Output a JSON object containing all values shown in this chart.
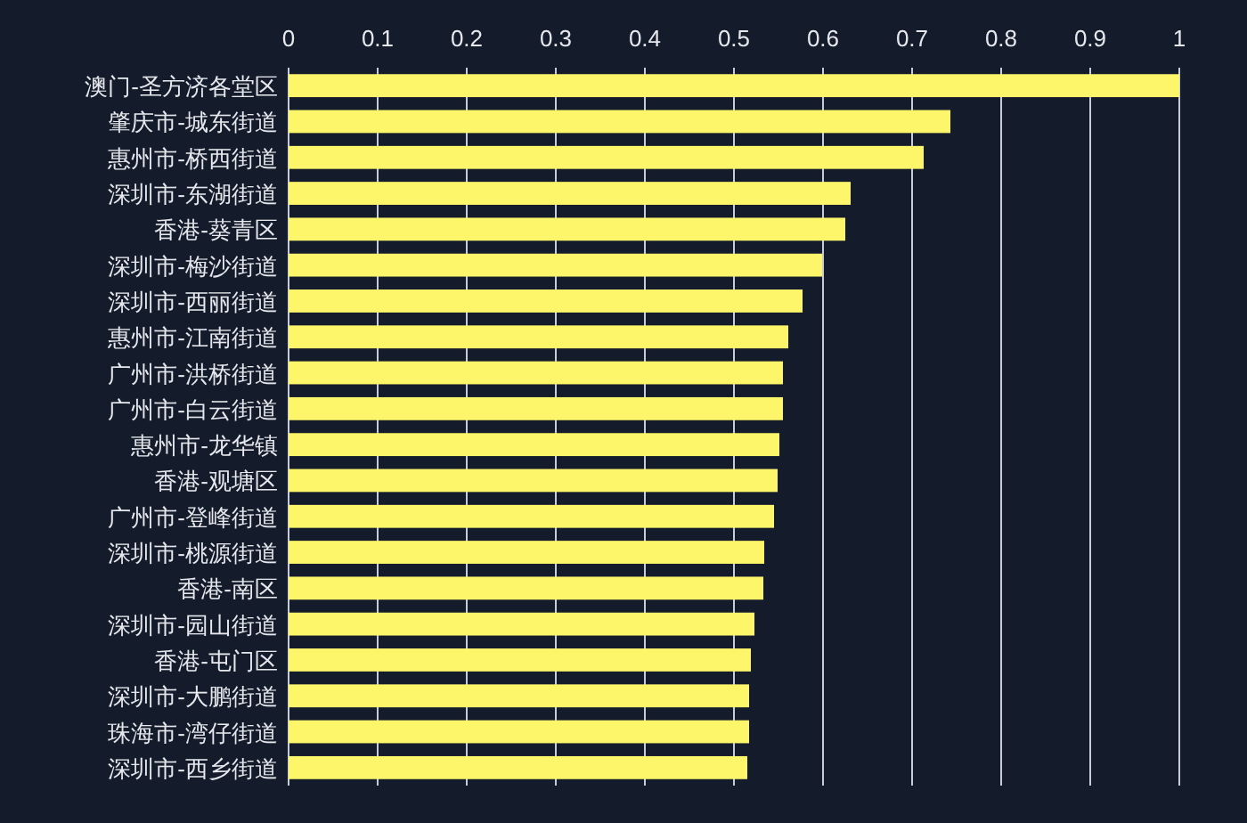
{
  "chart_data": {
    "type": "bar",
    "orientation": "horizontal",
    "categories": [
      "澳门-圣方济各堂区",
      "肇庆市-城东街道",
      "惠州市-桥西街道",
      "深圳市-东湖街道",
      "香港-葵青区",
      "深圳市-梅沙街道",
      "深圳市-西丽街道",
      "惠州市-江南街道",
      "广州市-洪桥街道",
      "广州市-白云街道",
      "惠州市-龙华镇",
      "香港-观塘区",
      "广州市-登峰街道",
      "深圳市-桃源街道",
      "香港-南区",
      "深圳市-园山街道",
      "香港-屯门区",
      "深圳市-大鹏街道",
      "珠海市-湾仔街道",
      "深圳市-西乡街道"
    ],
    "values": [
      1.0,
      0.743,
      0.713,
      0.631,
      0.625,
      0.599,
      0.577,
      0.561,
      0.555,
      0.555,
      0.551,
      0.549,
      0.545,
      0.534,
      0.533,
      0.523,
      0.519,
      0.517,
      0.517,
      0.515
    ],
    "color": "#fdf66a",
    "xlim": [
      0,
      1
    ],
    "xticks": [
      0,
      0.1,
      0.2,
      0.3,
      0.4,
      0.5,
      0.6,
      0.7,
      0.8,
      0.9,
      1
    ],
    "grid": "x"
  }
}
